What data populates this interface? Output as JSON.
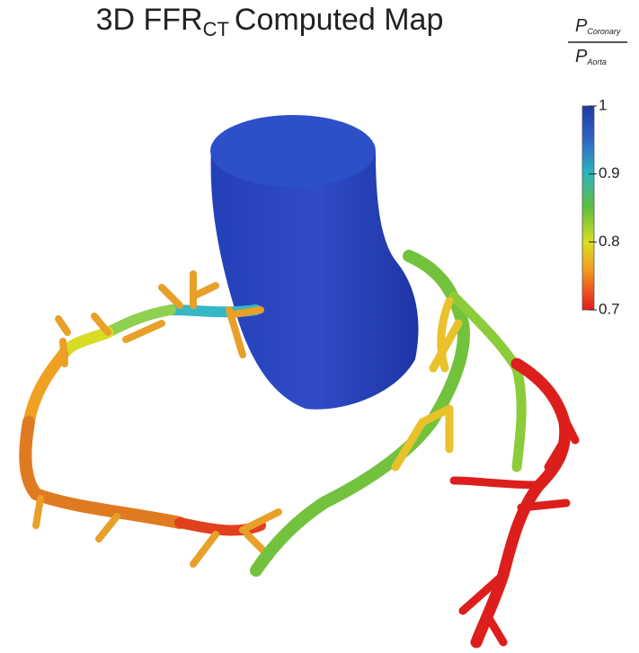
{
  "title": {
    "main": "3D FFR",
    "subscript": "CT",
    "rest": "Computed Map"
  },
  "colorbar": {
    "label": {
      "numerator": "P",
      "numerator_subscript": "Coronary",
      "denominator": "P",
      "denominator_subscript": "Aorta"
    },
    "lim": [
      0.7,
      1
    ],
    "ticks": [
      1,
      0.9,
      0.8,
      0.7
    ]
  }
}
